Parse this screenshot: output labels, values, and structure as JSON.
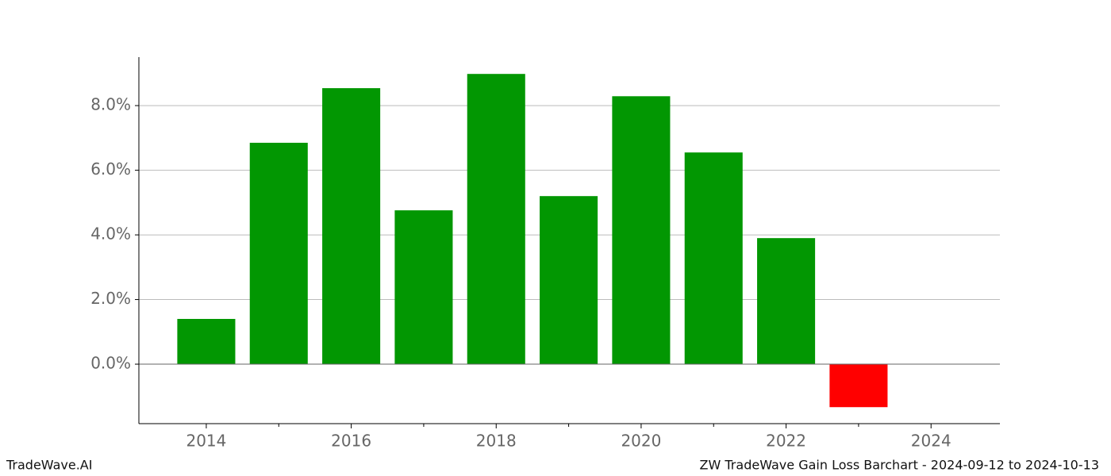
{
  "chart_data": {
    "type": "bar",
    "x": [
      2014,
      2015,
      2016,
      2017,
      2018,
      2019,
      2020,
      2021,
      2022,
      2023
    ],
    "values": [
      1.4,
      6.85,
      8.54,
      4.76,
      8.98,
      5.2,
      8.29,
      6.55,
      3.9,
      -1.33
    ],
    "positive_color": "#029702",
    "negative_color": "#ff0000",
    "bar_width": 0.8,
    "xlim": [
      2013.07,
      2024.95
    ],
    "xticks": [
      2014,
      2016,
      2018,
      2020,
      2022,
      2024
    ],
    "xminorticks": [
      2015,
      2017,
      2019,
      2021,
      2023
    ],
    "ylim": [
      -1.84,
      9.5
    ],
    "yticks": [
      {
        "value": 0,
        "label": "0.0%"
      },
      {
        "value": 2,
        "label": "2.0%"
      },
      {
        "value": 4,
        "label": "4.0%"
      },
      {
        "value": 6,
        "label": "6.0%"
      },
      {
        "value": 8,
        "label": "8.0%"
      }
    ],
    "grid": true,
    "footer_left": "TradeWave.AI",
    "footer_right": "ZW TradeWave Gain Loss Barchart - 2024-09-12 to 2024-10-13"
  }
}
